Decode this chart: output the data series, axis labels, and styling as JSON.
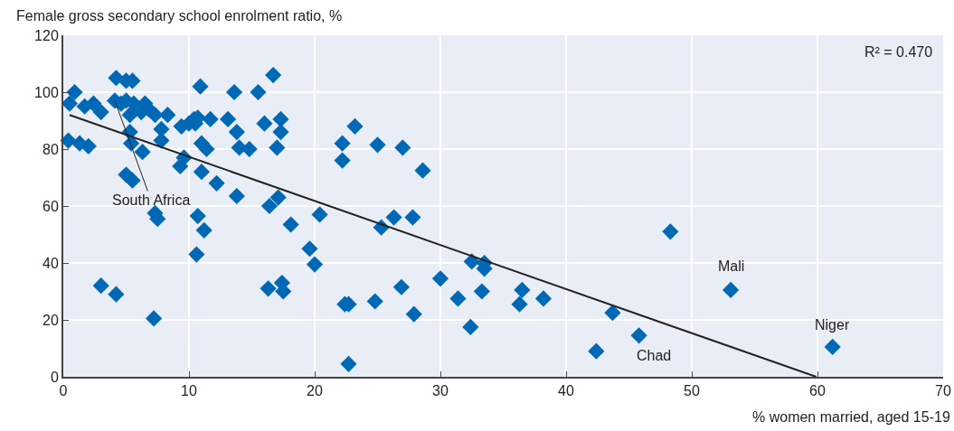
{
  "chart_data": {
    "type": "scatter",
    "xlabel": "% women married, aged 15-19",
    "ylabel": "Female gross secondary school enrolment ratio, %",
    "xlim": [
      0,
      70
    ],
    "ylim": [
      0,
      120
    ],
    "xticks": [
      0,
      10,
      20,
      30,
      40,
      50,
      60,
      70
    ],
    "yticks": [
      0,
      20,
      40,
      60,
      80,
      100,
      120
    ],
    "grid": true,
    "legend": false,
    "series": [
      {
        "marker": "diamond",
        "color": "#0068b4",
        "x": [
          0.4,
          0.5,
          0.9,
          1.3,
          1.7,
          2.0,
          2.4,
          3.0,
          3.0,
          4.2,
          4.1,
          4.2,
          4.6,
          5.0,
          5.0,
          5.5,
          5.3,
          5.6,
          5.3,
          5.4,
          5.0,
          5.5,
          6.2,
          6.5,
          6.3,
          6.8,
          7.3,
          7.3,
          7.5,
          7.2,
          7.8,
          7.8,
          8.3,
          9.3,
          9.6,
          9.4,
          10.0,
          10.4,
          10.7,
          10.5,
          10.7,
          10.6,
          10.9,
          11.0,
          11.4,
          11.0,
          11.2,
          11.7,
          12.2,
          13.1,
          13.6,
          13.8,
          14.0,
          13.8,
          14.8,
          15.5,
          16.0,
          16.7,
          17.0,
          17.3,
          17.3,
          17.1,
          16.4,
          16.3,
          17.4,
          17.5,
          18.1,
          19.6,
          20.0,
          20.4,
          22.2,
          22.2,
          23.2,
          22.4,
          22.7,
          22.7,
          25.0,
          27.0,
          28.6,
          24.8,
          25.3,
          26.3,
          26.9,
          27.8,
          27.9,
          30.0,
          31.4,
          32.5,
          33.5,
          33.5,
          32.4,
          33.3,
          36.5,
          36.3,
          38.2,
          42.4,
          43.7,
          45.8,
          48.3,
          53.1,
          61.2
        ],
        "values": [
          83,
          96,
          100,
          82,
          95,
          81,
          96,
          93,
          32,
          29,
          97,
          105,
          96,
          104,
          97,
          104,
          92,
          96,
          86,
          82,
          71,
          69,
          93,
          96,
          79,
          94,
          92,
          57.5,
          55.5,
          20.5,
          87,
          83,
          92,
          74,
          77,
          88,
          89,
          90.5,
          91,
          89,
          56.5,
          43,
          102,
          82,
          80,
          72,
          51.5,
          90.5,
          68,
          90.5,
          100,
          86,
          80.5,
          63.5,
          80,
          100,
          89,
          106,
          80.5,
          90.5,
          86,
          63,
          60,
          31,
          33,
          30,
          53.5,
          45,
          39.5,
          57,
          82,
          76,
          88,
          25.5,
          25.5,
          4.5,
          81.5,
          80.5,
          72.5,
          26.5,
          52.5,
          56,
          31.5,
          56,
          22,
          34.5,
          27.5,
          40.5,
          40,
          38,
          17.5,
          30,
          30.5,
          25.5,
          27.5,
          9,
          22.5,
          14.5,
          51,
          30.5,
          10.5
        ]
      },
      {
        "type": "line",
        "color": "#222222",
        "line_style": "solid",
        "x": [
          0.5,
          59.9
        ],
        "values": [
          92,
          0
        ]
      }
    ],
    "annotations": [
      {
        "text": "South Africa",
        "x": 4.1,
        "y": 97
      },
      {
        "text": "Mali",
        "x": 53.1,
        "y": 30.5
      },
      {
        "text": "Chad",
        "x": 45.8,
        "y": 14.6
      },
      {
        "text": "Niger",
        "x": 61.2,
        "y": 10.5
      },
      "R² = 0.470"
    ]
  }
}
